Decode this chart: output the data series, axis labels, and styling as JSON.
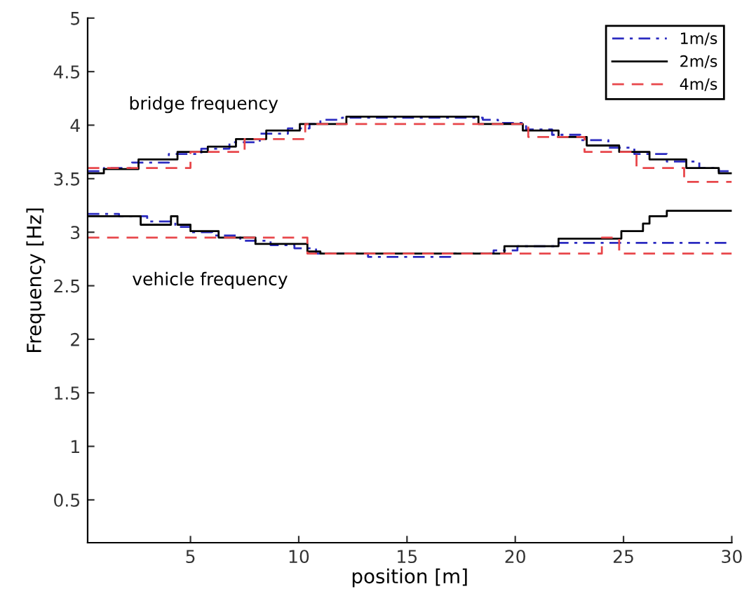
{
  "chart_data": {
    "type": "step",
    "xlabel": "position [m]",
    "ylabel": "Frequency [Hz]",
    "annotations": [
      "bridge frequency",
      "vehicle frequency"
    ],
    "xlim": [
      0.25,
      30
    ],
    "ylim": [
      0.1,
      5
    ],
    "xticks": [
      5,
      10,
      15,
      20,
      25,
      30
    ],
    "yticks": [
      0.5,
      1,
      1.5,
      2,
      2.5,
      3,
      3.5,
      4,
      4.5,
      5
    ],
    "grid": false,
    "legend": "top right",
    "series": [
      {
        "name": "1m/s",
        "color": "#2b2bc0",
        "line_style": "dashdot",
        "x": [
          0.25,
          1.0,
          2.3,
          4.0,
          5.5,
          6.8,
          8.2,
          9.5,
          10.5,
          11.0,
          12.0,
          18.5,
          19.2,
          20.5,
          21.7,
          23.0,
          24.3,
          25.5,
          27.0,
          28.5,
          29.4,
          30
        ],
        "values": [
          3.57,
          3.6,
          3.65,
          3.73,
          3.78,
          3.84,
          3.92,
          3.97,
          4.01,
          4.05,
          4.07,
          4.05,
          4.02,
          3.96,
          3.91,
          3.86,
          3.79,
          3.73,
          3.66,
          3.6,
          3.57,
          3.57
        ]
      },
      {
        "name": "2m/s",
        "color": "#000000",
        "line_style": "solid",
        "x": [
          0.25,
          1.0,
          2.6,
          4.4,
          5.8,
          7.1,
          8.5,
          10.05,
          12.2,
          18.3,
          20.35,
          22.0,
          23.3,
          24.8,
          26.2,
          27.9,
          29.4,
          30
        ],
        "values": [
          3.55,
          3.59,
          3.68,
          3.75,
          3.8,
          3.87,
          3.95,
          4.01,
          4.08,
          4.01,
          3.95,
          3.89,
          3.81,
          3.75,
          3.68,
          3.6,
          3.55,
          3.55
        ]
      },
      {
        "name": "4m/s",
        "color": "#e8474b",
        "line_style": "dashed",
        "x": [
          0.25,
          5.0,
          7.5,
          10.3,
          20.6,
          23.2,
          25.6,
          27.8,
          30
        ],
        "values": [
          3.6,
          3.75,
          3.87,
          4.01,
          3.89,
          3.75,
          3.6,
          3.47,
          3.47
        ]
      },
      {
        "color": "#2b2bc0",
        "line_style": "dashdot",
        "x": [
          0.25,
          1.7,
          3.0,
          4.3,
          5.0,
          6.0,
          7.3,
          8.7,
          9.8,
          10.8,
          13.2,
          17.0,
          19.0,
          20.1,
          22.0,
          30
        ],
        "values": [
          3.17,
          3.15,
          3.1,
          3.05,
          3.0,
          2.97,
          2.92,
          2.88,
          2.85,
          2.8,
          2.77,
          2.8,
          2.83,
          2.87,
          2.9,
          2.9
        ]
      },
      {
        "color": "#000000",
        "line_style": "solid",
        "x": [
          0.25,
          2.7,
          4.1,
          4.4,
          5.0,
          6.3,
          8.0,
          10.4,
          11.0,
          19.5,
          22.0,
          24.9,
          25.9,
          26.2,
          27.0,
          30
        ],
        "values": [
          3.15,
          3.07,
          3.15,
          3.07,
          3.01,
          2.95,
          2.89,
          2.82,
          2.8,
          2.87,
          2.94,
          3.01,
          3.08,
          3.15,
          3.2,
          3.2
        ]
      },
      {
        "color": "#e8474b",
        "line_style": "dashed",
        "x": [
          0.25,
          10.4,
          24.0,
          24.8,
          30
        ],
        "values": [
          2.95,
          2.8,
          2.95,
          2.8,
          2.8
        ]
      }
    ]
  }
}
